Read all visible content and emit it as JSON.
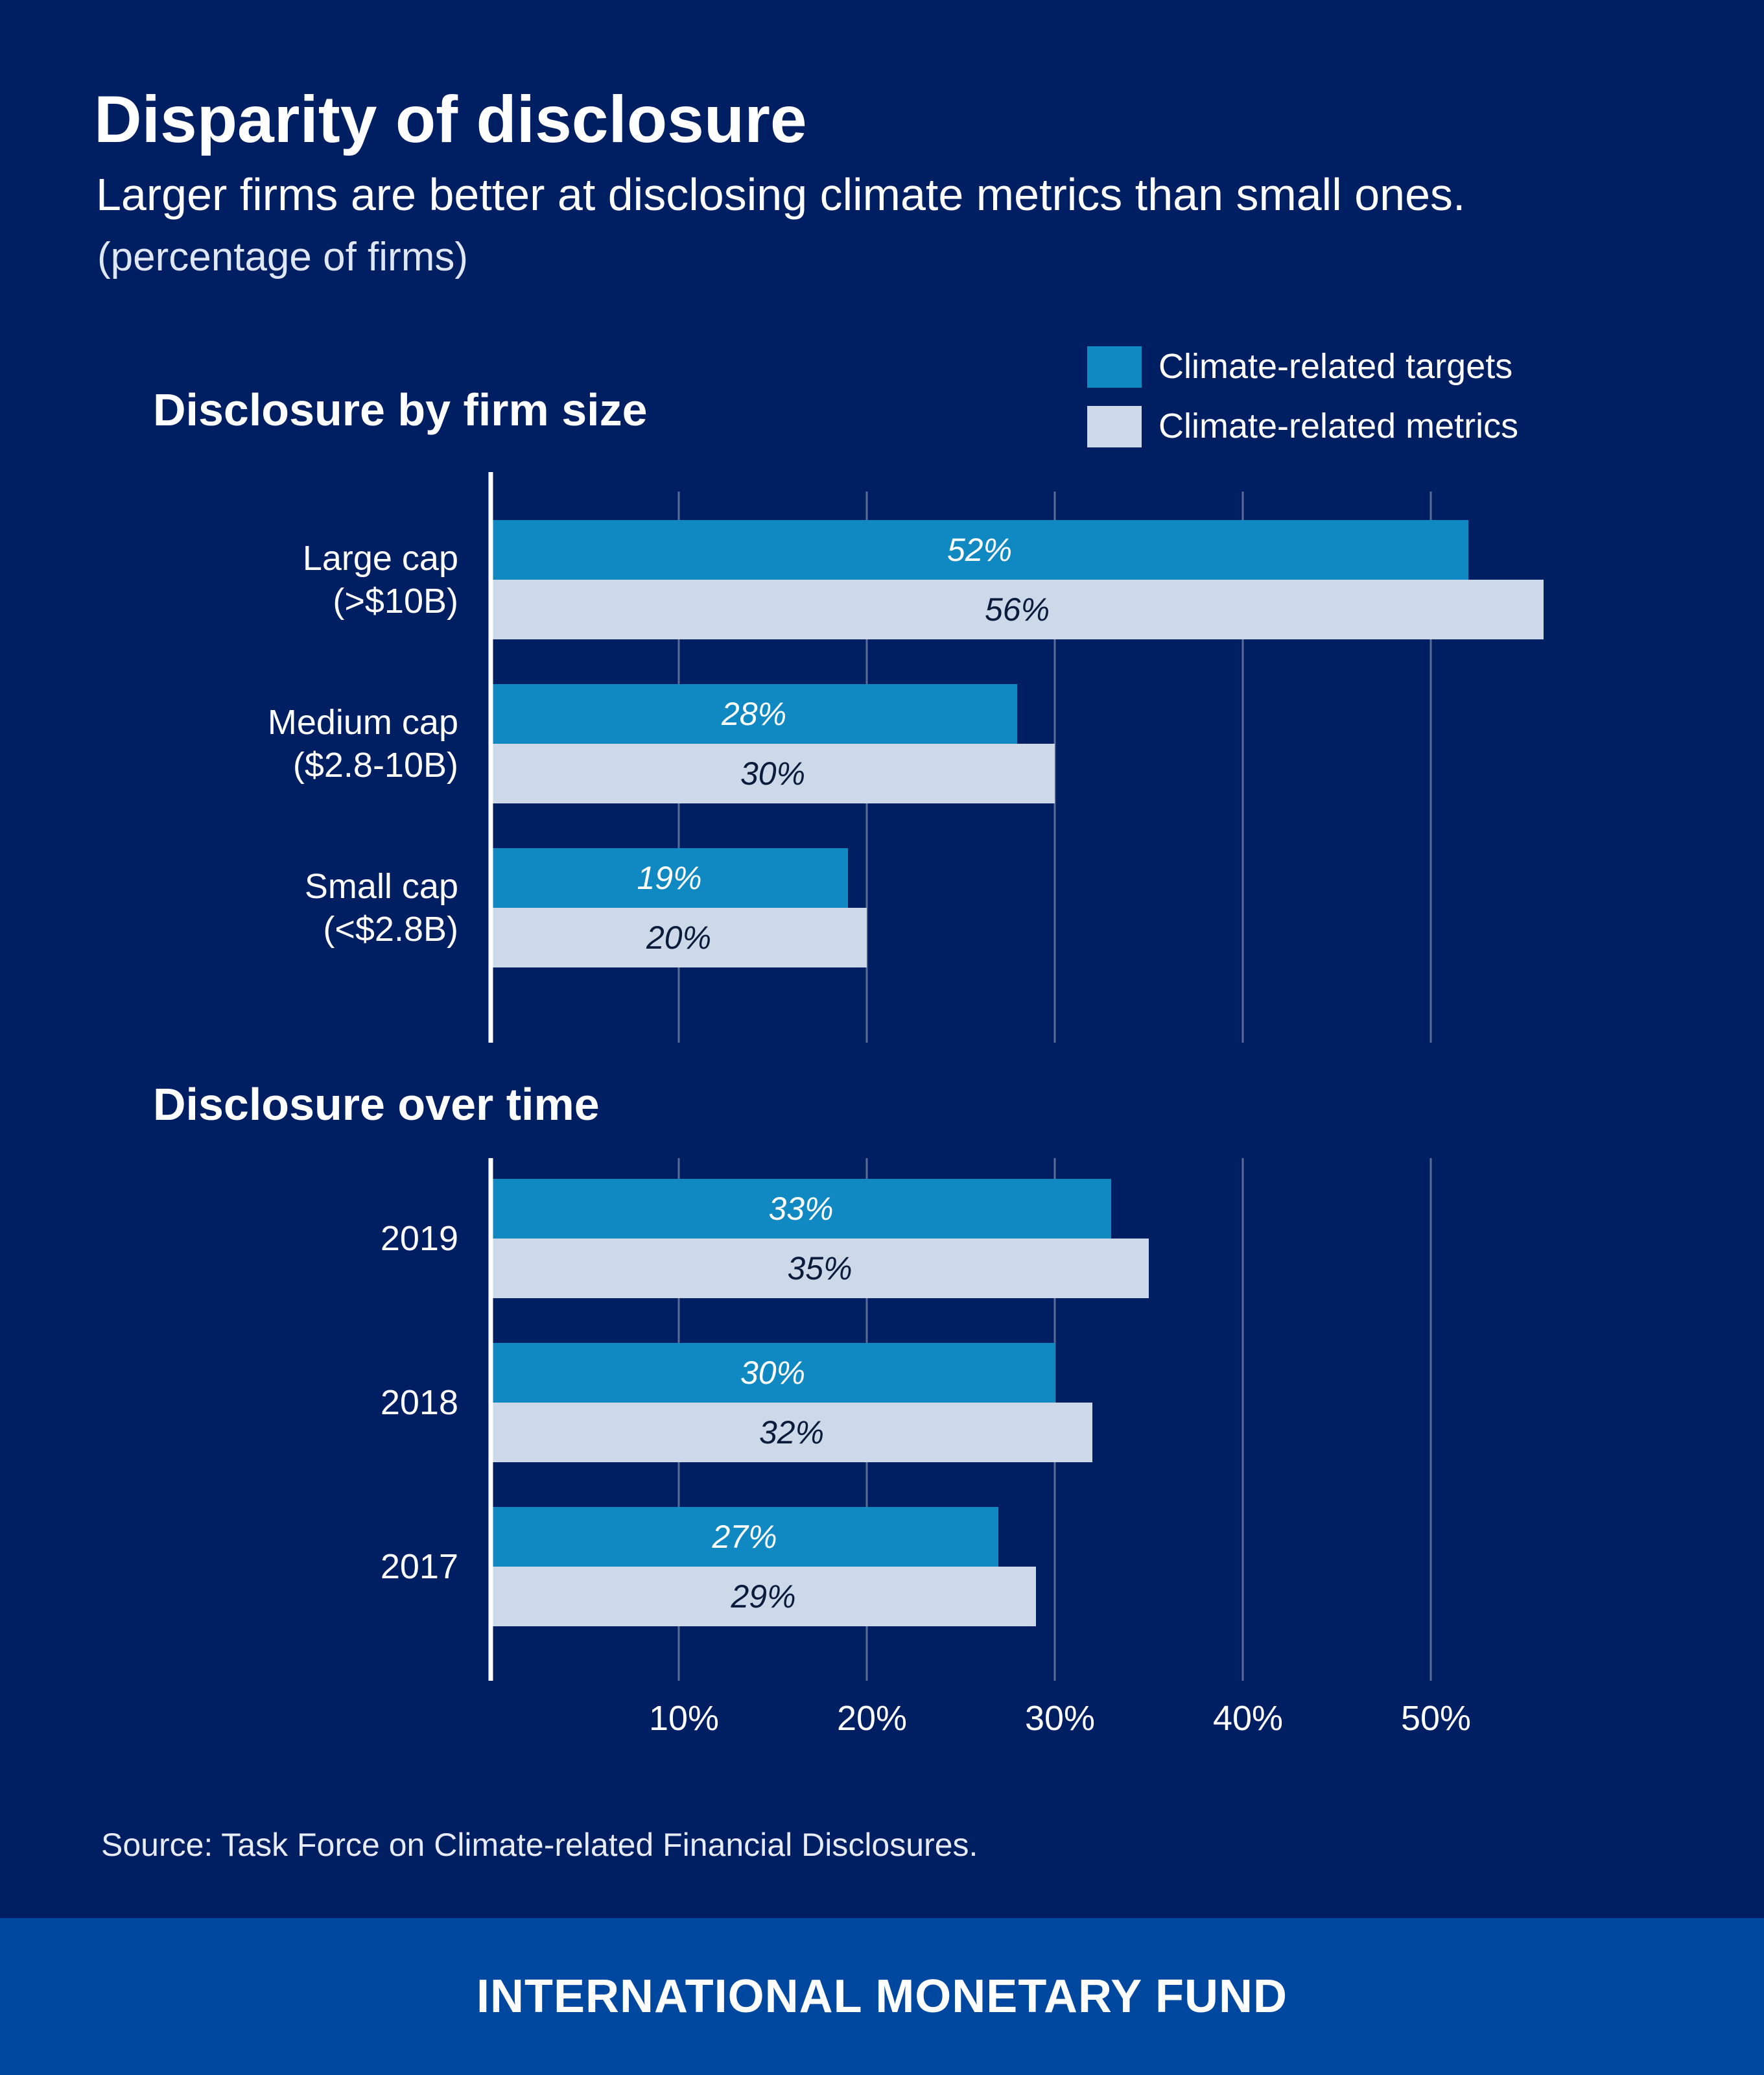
{
  "header": {
    "title": "Disparity of disclosure",
    "subtitle": "Larger firms are better at disclosing climate metrics than small ones.",
    "unit_note": "(percentage of firms)"
  },
  "legend": [
    {
      "label": "Climate-related targets",
      "color": "#1088c2"
    },
    {
      "label": "Climate-related metrics",
      "color": "#cdd9e8"
    }
  ],
  "colors": {
    "background": "#001e62",
    "targets": "#1088c2",
    "metrics": "#cdd9e8",
    "footer": "#0047a0"
  },
  "chart_data": [
    {
      "type": "bar",
      "orientation": "horizontal",
      "title": "Disclosure by firm size",
      "categories": [
        "Large cap\n(>$10B)",
        "Medium cap\n($2.8-10B)",
        "Small cap\n(<$2.8B)"
      ],
      "series": [
        {
          "name": "Climate-related targets",
          "values": [
            52,
            28,
            19
          ],
          "labels": [
            "52%",
            "28%",
            "19%"
          ]
        },
        {
          "name": "Climate-related metrics",
          "values": [
            56,
            30,
            20
          ],
          "labels": [
            "56%",
            "30%",
            "20%"
          ]
        }
      ],
      "xlim": [
        0,
        60
      ],
      "grid": true
    },
    {
      "type": "bar",
      "orientation": "horizontal",
      "title": "Disclosure over time",
      "categories": [
        "2019",
        "2018",
        "2017"
      ],
      "series": [
        {
          "name": "Climate-related targets",
          "values": [
            33,
            30,
            27
          ],
          "labels": [
            "33%",
            "30%",
            "27%"
          ]
        },
        {
          "name": "Climate-related metrics",
          "values": [
            35,
            32,
            29
          ],
          "labels": [
            "35%",
            "32%",
            "29%"
          ]
        }
      ],
      "xlim": [
        0,
        60
      ],
      "grid": true
    }
  ],
  "axis": {
    "ticks": [
      10,
      20,
      30,
      40,
      50
    ],
    "tick_labels": [
      "10%",
      "20%",
      "30%",
      "40%",
      "50%"
    ]
  },
  "source": "Source: Task Force on Climate-related Financial Disclosures.",
  "footer": {
    "label": "INTERNATIONAL MONETARY FUND"
  }
}
